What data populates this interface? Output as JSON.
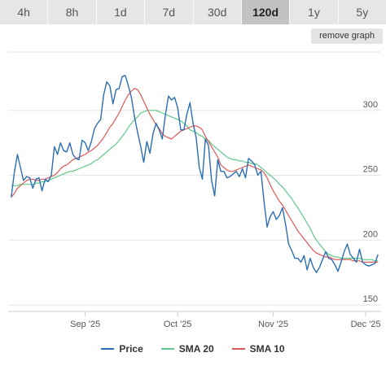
{
  "tabs": [
    {
      "label": "4h",
      "active": false
    },
    {
      "label": "8h",
      "active": false
    },
    {
      "label": "1d",
      "active": false
    },
    {
      "label": "7d",
      "active": false
    },
    {
      "label": "30d",
      "active": false
    },
    {
      "label": "120d",
      "active": true
    },
    {
      "label": "1y",
      "active": false
    },
    {
      "label": "5y",
      "active": false
    }
  ],
  "remove_graph_label": "remove graph",
  "colors": {
    "price": "#2a6eb3",
    "sma20": "#5cc98a",
    "sma10": "#e05757"
  },
  "legend": [
    {
      "label": "Price",
      "color": "#2a6eb3"
    },
    {
      "label": "SMA 20",
      "color": "#5cc98a"
    },
    {
      "label": "SMA 10",
      "color": "#e05757"
    }
  ],
  "chart_data": {
    "type": "line",
    "title": "",
    "xlabel": "",
    "ylabel": "",
    "ylim": [
      145,
      345
    ],
    "xlim": [
      "2025-08-07",
      "2025-12-06"
    ],
    "yticks": [
      150,
      200,
      250,
      300
    ],
    "xticks": [
      {
        "date": "2025-09-01",
        "label": "Sep '25"
      },
      {
        "date": "2025-10-01",
        "label": "Oct '25"
      },
      {
        "date": "2025-11-01",
        "label": "Nov '25"
      },
      {
        "date": "2025-12-01",
        "label": "Dec '25"
      }
    ],
    "grid": "horizontal",
    "legend_position": "bottom",
    "x": [
      "2025-08-08",
      "2025-08-09",
      "2025-08-10",
      "2025-08-11",
      "2025-08-12",
      "2025-08-13",
      "2025-08-14",
      "2025-08-15",
      "2025-08-16",
      "2025-08-17",
      "2025-08-18",
      "2025-08-19",
      "2025-08-20",
      "2025-08-21",
      "2025-08-22",
      "2025-08-23",
      "2025-08-24",
      "2025-08-25",
      "2025-08-26",
      "2025-08-27",
      "2025-08-28",
      "2025-08-29",
      "2025-08-30",
      "2025-08-31",
      "2025-09-01",
      "2025-09-02",
      "2025-09-03",
      "2025-09-04",
      "2025-09-05",
      "2025-09-06",
      "2025-09-07",
      "2025-09-08",
      "2025-09-09",
      "2025-09-10",
      "2025-09-11",
      "2025-09-12",
      "2025-09-13",
      "2025-09-14",
      "2025-09-15",
      "2025-09-16",
      "2025-09-17",
      "2025-09-18",
      "2025-09-19",
      "2025-09-20",
      "2025-09-21",
      "2025-09-22",
      "2025-09-23",
      "2025-09-24",
      "2025-09-25",
      "2025-09-26",
      "2025-09-27",
      "2025-09-28",
      "2025-09-29",
      "2025-09-30",
      "2025-10-01",
      "2025-10-02",
      "2025-10-03",
      "2025-10-04",
      "2025-10-05",
      "2025-10-06",
      "2025-10-07",
      "2025-10-08",
      "2025-10-09",
      "2025-10-10",
      "2025-10-11",
      "2025-10-12",
      "2025-10-13",
      "2025-10-14",
      "2025-10-15",
      "2025-10-16",
      "2025-10-17",
      "2025-10-18",
      "2025-10-19",
      "2025-10-20",
      "2025-10-21",
      "2025-10-22",
      "2025-10-23",
      "2025-10-24",
      "2025-10-25",
      "2025-10-26",
      "2025-10-27",
      "2025-10-28",
      "2025-10-29",
      "2025-10-30",
      "2025-10-31",
      "2025-11-01",
      "2025-11-02",
      "2025-11-03",
      "2025-11-04",
      "2025-11-05",
      "2025-11-06",
      "2025-11-07",
      "2025-11-08",
      "2025-11-09",
      "2025-11-10",
      "2025-11-11",
      "2025-11-12",
      "2025-11-13",
      "2025-11-14",
      "2025-11-15",
      "2025-11-16",
      "2025-11-17",
      "2025-11-18",
      "2025-11-19",
      "2025-11-20",
      "2025-11-21",
      "2025-11-22",
      "2025-11-23",
      "2025-11-24",
      "2025-11-25",
      "2025-11-26",
      "2025-11-27",
      "2025-11-28",
      "2025-11-29",
      "2025-11-30",
      "2025-12-01",
      "2025-12-02",
      "2025-12-03",
      "2025-12-04",
      "2025-12-05"
    ],
    "series": [
      {
        "name": "Price",
        "color": "#2a6eb3",
        "values": [
          233,
          252,
          266,
          256,
          246,
          249,
          248,
          240,
          247,
          248,
          238,
          247,
          245,
          250,
          272,
          266,
          275,
          269,
          268,
          275,
          266,
          263,
          262,
          277,
          275,
          269,
          276,
          286,
          290,
          293,
          312,
          322,
          319,
          305,
          316,
          317,
          326,
          327,
          319,
          310,
          295,
          283,
          272,
          260,
          276,
          267,
          282,
          290,
          285,
          278,
          296,
          311,
          308,
          310,
          302,
          285,
          285,
          297,
          306,
          290,
          279,
          256,
          247,
          278,
          273,
          246,
          234,
          262,
          253,
          253,
          248,
          249,
          251,
          253,
          249,
          255,
          248,
          263,
          261,
          258,
          250,
          253,
          230,
          210,
          218,
          222,
          216,
          219,
          225,
          212,
          197,
          192,
          186,
          186,
          183,
          188,
          177,
          186,
          179,
          175,
          179,
          185,
          191,
          186,
          185,
          181,
          176,
          183,
          191,
          197,
          189,
          186,
          183,
          193,
          183,
          181,
          180,
          181,
          182,
          189
        ]
      },
      {
        "name": "SMA 20",
        "color": "#5cc98a",
        "values": [
          242,
          242,
          242,
          243,
          243,
          243,
          243,
          243,
          244,
          244,
          245,
          245,
          246,
          247,
          248,
          249,
          250,
          251,
          252,
          253,
          253,
          254,
          255,
          256,
          257,
          258,
          259,
          261,
          262,
          264,
          266,
          268,
          270,
          272,
          274,
          277,
          280,
          283,
          287,
          290,
          293,
          295,
          298,
          299,
          300,
          300,
          300,
          300,
          299,
          298,
          297,
          296,
          295,
          294,
          293,
          292,
          290,
          288,
          285,
          284,
          283,
          281,
          280,
          278,
          277,
          274,
          272,
          270,
          268,
          266,
          264,
          263,
          262,
          262,
          261,
          261,
          260,
          260,
          259,
          259,
          258,
          256,
          254,
          252,
          250,
          248,
          246,
          243,
          241,
          238,
          235,
          232,
          228,
          225,
          221,
          217,
          213,
          209,
          204,
          200,
          197,
          194,
          191,
          189,
          188,
          187,
          187,
          186,
          186,
          186,
          186,
          186,
          186,
          186,
          185,
          185,
          185,
          185,
          184,
          184
        ]
      },
      {
        "name": "SMA 10",
        "color": "#e05757",
        "values": [
          233,
          236,
          240,
          242,
          244,
          246,
          247,
          247,
          246,
          246,
          247,
          247,
          248,
          249,
          250,
          252,
          255,
          257,
          258,
          260,
          262,
          263,
          264,
          265,
          266,
          268,
          269,
          271,
          273,
          276,
          279,
          283,
          287,
          290,
          294,
          298,
          303,
          308,
          312,
          315,
          317,
          316,
          312,
          307,
          302,
          297,
          293,
          289,
          286,
          282,
          280,
          279,
          278,
          280,
          282,
          284,
          285,
          286,
          287,
          288,
          288,
          287,
          285,
          280,
          276,
          272,
          268,
          264,
          258,
          256,
          254,
          253,
          253,
          254,
          255,
          256,
          257,
          258,
          257,
          256,
          255,
          254,
          252,
          248,
          243,
          238,
          234,
          230,
          227,
          223,
          219,
          215,
          211,
          207,
          204,
          201,
          198,
          195,
          192,
          190,
          189,
          188,
          187,
          187,
          186,
          185,
          185,
          185,
          185,
          185,
          185,
          184,
          184,
          184,
          183,
          183,
          183,
          183,
          183,
          183
        ]
      }
    ]
  }
}
